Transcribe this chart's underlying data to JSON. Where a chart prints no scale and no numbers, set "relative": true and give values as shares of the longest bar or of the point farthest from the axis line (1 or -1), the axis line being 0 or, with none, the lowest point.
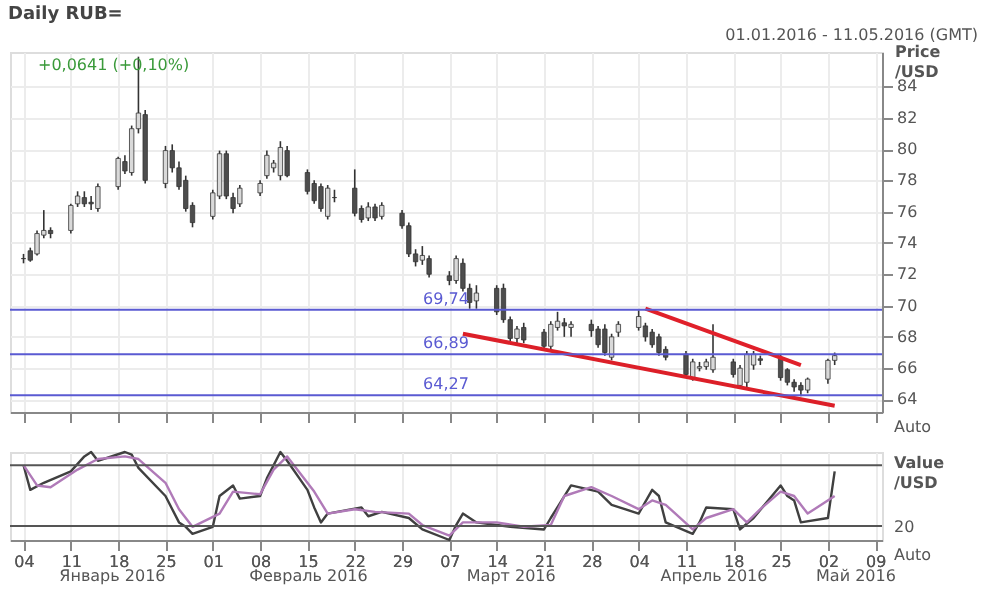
{
  "chart_data": [
    {
      "type": "candlestick",
      "title": "Daily RUB=",
      "subtitle": "+0,0641 (+0,10%)",
      "ylabel": "Price /USD",
      "annotations": [
        "01.01.2016 - 11.05.2016 (GMT)",
        "Auto"
      ],
      "x": [
        "2016-01-04",
        "2016-01-05",
        "2016-01-06",
        "2016-01-07",
        "2016-01-08",
        "2016-01-11",
        "2016-01-12",
        "2016-01-13",
        "2016-01-14",
        "2016-01-15",
        "2016-01-18",
        "2016-01-19",
        "2016-01-20",
        "2016-01-21",
        "2016-01-22",
        "2016-01-25",
        "2016-01-26",
        "2016-01-27",
        "2016-01-28",
        "2016-01-29",
        "2016-02-01",
        "2016-02-02",
        "2016-02-03",
        "2016-02-04",
        "2016-02-05",
        "2016-02-08",
        "2016-02-09",
        "2016-02-10",
        "2016-02-11",
        "2016-02-12",
        "2016-02-15",
        "2016-02-16",
        "2016-02-17",
        "2016-02-18",
        "2016-02-19",
        "2016-02-22",
        "2016-02-23",
        "2016-02-24",
        "2016-02-25",
        "2016-02-26",
        "2016-02-29",
        "2016-03-01",
        "2016-03-02",
        "2016-03-03",
        "2016-03-04",
        "2016-03-07",
        "2016-03-08",
        "2016-03-09",
        "2016-03-10",
        "2016-03-11",
        "2016-03-14",
        "2016-03-15",
        "2016-03-16",
        "2016-03-17",
        "2016-03-18",
        "2016-03-21",
        "2016-03-22",
        "2016-03-23",
        "2016-03-24",
        "2016-03-25",
        "2016-03-28",
        "2016-03-29",
        "2016-03-30",
        "2016-03-31",
        "2016-04-01",
        "2016-04-04",
        "2016-04-05",
        "2016-04-06",
        "2016-04-07",
        "2016-04-08",
        "2016-04-11",
        "2016-04-12",
        "2016-04-13",
        "2016-04-14",
        "2016-04-15",
        "2016-04-18",
        "2016-04-19",
        "2016-04-20",
        "2016-04-21",
        "2016-04-22",
        "2016-04-25",
        "2016-04-26",
        "2016-04-27",
        "2016-04-28",
        "2016-04-29",
        "2016-05-02",
        "2016-05-03"
      ],
      "ohlc": [
        [
          73.0,
          73.3,
          72.7,
          73.0
        ],
        [
          73.5,
          73.7,
          72.8,
          72.9
        ],
        [
          73.3,
          74.8,
          73.2,
          74.6
        ],
        [
          74.5,
          76.1,
          74.3,
          74.8
        ],
        [
          74.8,
          75.0,
          74.3,
          74.6
        ],
        [
          74.8,
          76.5,
          74.6,
          76.4
        ],
        [
          76.5,
          77.3,
          76.3,
          77.0
        ],
        [
          76.9,
          77.3,
          76.3,
          76.5
        ],
        [
          76.6,
          77.0,
          76.1,
          76.5
        ],
        [
          76.2,
          77.8,
          76.0,
          77.6
        ],
        [
          77.6,
          79.5,
          77.4,
          79.4
        ],
        [
          79.2,
          79.6,
          78.4,
          78.6
        ],
        [
          78.5,
          81.5,
          78.3,
          81.3
        ],
        [
          81.3,
          85.9,
          81.0,
          82.3
        ],
        [
          82.2,
          82.5,
          77.8,
          78.0
        ],
        [
          77.8,
          80.2,
          77.5,
          79.9
        ],
        [
          79.9,
          80.3,
          78.5,
          78.8
        ],
        [
          78.8,
          79.2,
          77.4,
          77.6
        ],
        [
          78.0,
          78.3,
          76.0,
          76.2
        ],
        [
          76.4,
          76.6,
          75.0,
          75.3
        ],
        [
          75.7,
          77.4,
          75.5,
          77.2
        ],
        [
          77.0,
          79.9,
          76.8,
          79.7
        ],
        [
          79.7,
          79.9,
          76.8,
          77.0
        ],
        [
          76.9,
          77.2,
          75.9,
          76.2
        ],
        [
          76.5,
          77.7,
          76.3,
          77.5
        ],
        [
          77.2,
          78.0,
          77.0,
          77.8
        ],
        [
          78.3,
          79.9,
          78.1,
          79.6
        ],
        [
          78.8,
          79.3,
          78.5,
          79.1
        ],
        [
          78.3,
          80.5,
          78.0,
          80.1
        ],
        [
          79.9,
          80.2,
          78.2,
          78.3
        ],
        [
          78.5,
          78.7,
          77.1,
          77.3
        ],
        [
          77.8,
          78.0,
          76.5,
          76.7
        ],
        [
          77.6,
          77.8,
          76.0,
          76.2
        ],
        [
          75.7,
          77.7,
          75.5,
          77.5
        ],
        [
          76.9,
          77.4,
          76.6,
          76.9
        ],
        [
          77.5,
          78.7,
          75.7,
          75.9
        ],
        [
          76.2,
          76.4,
          75.3,
          75.5
        ],
        [
          75.6,
          76.6,
          75.4,
          76.3
        ],
        [
          76.3,
          76.5,
          75.4,
          75.6
        ],
        [
          75.7,
          76.6,
          75.5,
          76.4
        ],
        [
          75.9,
          76.1,
          74.9,
          75.1
        ],
        [
          75.1,
          75.3,
          73.1,
          73.3
        ],
        [
          73.3,
          73.6,
          72.5,
          72.8
        ],
        [
          72.9,
          73.8,
          72.6,
          73.2
        ],
        [
          73.0,
          73.2,
          71.8,
          72.0
        ],
        [
          71.9,
          72.2,
          71.3,
          71.6
        ],
        [
          71.6,
          73.2,
          71.4,
          73.0
        ],
        [
          72.7,
          73.0,
          70.9,
          71.1
        ],
        [
          71.1,
          71.4,
          69.8,
          70.2
        ],
        [
          70.3,
          71.3,
          69.8,
          70.8
        ],
        [
          71.1,
          71.3,
          69.4,
          69.6
        ],
        [
          71.1,
          71.4,
          68.9,
          69.1
        ],
        [
          69.1,
          69.3,
          67.7,
          67.9
        ],
        [
          67.9,
          68.7,
          67.6,
          68.5
        ],
        [
          68.6,
          68.9,
          67.6,
          67.8
        ],
        [
          68.3,
          68.5,
          67.2,
          67.4
        ],
        [
          67.4,
          69.0,
          67.2,
          68.8
        ],
        [
          68.6,
          69.6,
          68.4,
          69.0
        ],
        [
          68.9,
          69.2,
          68.0,
          68.7
        ],
        [
          68.6,
          69.0,
          68.0,
          68.8
        ],
        [
          68.8,
          69.1,
          68.0,
          68.4
        ],
        [
          68.5,
          68.7,
          67.3,
          67.5
        ],
        [
          68.5,
          68.8,
          66.8,
          67.0
        ],
        [
          66.7,
          68.2,
          66.5,
          68.0
        ],
        [
          68.3,
          69.0,
          68.0,
          68.8
        ],
        [
          68.6,
          69.7,
          68.4,
          69.3
        ],
        [
          68.7,
          68.9,
          67.7,
          68.0
        ],
        [
          68.3,
          68.5,
          67.3,
          67.5
        ],
        [
          68.0,
          68.2,
          66.8,
          67.0
        ],
        [
          67.2,
          67.4,
          66.5,
          66.7
        ],
        [
          66.9,
          67.1,
          65.4,
          65.6
        ],
        [
          65.4,
          66.6,
          65.2,
          66.4
        ],
        [
          66.0,
          66.4,
          65.8,
          66.1
        ],
        [
          66.1,
          66.6,
          65.9,
          66.4
        ],
        [
          65.9,
          68.8,
          65.7,
          66.7
        ],
        [
          66.4,
          66.6,
          65.4,
          65.6
        ],
        [
          64.9,
          66.2,
          64.7,
          66.0
        ],
        [
          65.1,
          67.1,
          64.8,
          66.9
        ],
        [
          66.2,
          67.1,
          65.9,
          66.9
        ],
        [
          66.6,
          66.8,
          66.2,
          66.5
        ],
        [
          66.7,
          66.9,
          65.2,
          65.4
        ],
        [
          65.9,
          66.0,
          64.9,
          65.1
        ],
        [
          65.1,
          65.3,
          64.5,
          64.8
        ],
        [
          64.9,
          65.1,
          64.2,
          64.6
        ],
        [
          64.6,
          65.4,
          64.4,
          65.3
        ],
        [
          65.3,
          66.6,
          65.0,
          66.5
        ],
        [
          66.5,
          67.0,
          66.2,
          66.8
        ]
      ],
      "colors": [
        "#333333",
        "#4d4d4d",
        "#d9d9d9",
        "#d9d9d9",
        "#4d4d4d",
        "#d9d9d9",
        "#d9d9d9",
        "#4d4d4d",
        "#4d4d4d",
        "#d9d9d9",
        "#d9d9d9",
        "#4d4d4d",
        "#d9d9d9",
        "#d9d9d9",
        "#4d4d4d",
        "#d9d9d9",
        "#4d4d4d",
        "#4d4d4d",
        "#4d4d4d",
        "#4d4d4d",
        "#d9d9d9",
        "#d9d9d9",
        "#4d4d4d",
        "#4d4d4d",
        "#d9d9d9",
        "#d9d9d9",
        "#d9d9d9",
        "#d9d9d9",
        "#d9d9d9",
        "#4d4d4d",
        "#4d4d4d",
        "#4d4d4d",
        "#4d4d4d",
        "#d9d9d9",
        "#333333",
        "#4d4d4d",
        "#4d4d4d",
        "#d9d9d9",
        "#4d4d4d",
        "#d9d9d9",
        "#4d4d4d",
        "#4d4d4d",
        "#4d4d4d",
        "#d9d9d9",
        "#4d4d4d",
        "#4d4d4d",
        "#d9d9d9",
        "#4d4d4d",
        "#4d4d4d",
        "#d9d9d9",
        "#4d4d4d",
        "#4d4d4d",
        "#4d4d4d",
        "#d9d9d9",
        "#4d4d4d",
        "#4d4d4d",
        "#d9d9d9",
        "#d9d9d9",
        "#4d4d4d",
        "#d9d9d9",
        "#4d4d4d",
        "#4d4d4d",
        "#4d4d4d",
        "#d9d9d9",
        "#d9d9d9",
        "#d9d9d9",
        "#4d4d4d",
        "#4d4d4d",
        "#4d4d4d",
        "#4d4d4d",
        "#4d4d4d",
        "#d9d9d9",
        "#d9d9d9",
        "#d9d9d9",
        "#d9d9d9",
        "#4d4d4d",
        "#d9d9d9",
        "#d9d9d9",
        "#d9d9d9",
        "#4d4d4d",
        "#4d4d4d",
        "#4d4d4d",
        "#4d4d4d",
        "#4d4d4d",
        "#d9d9d9",
        "#d9d9d9",
        "#d9d9d9"
      ],
      "series": [
        {
          "type": "line",
          "color": "#e0202a",
          "x": [
            "2016-04-05",
            "2016-04-28"
          ],
          "values": [
            69.8,
            66.2
          ]
        },
        {
          "type": "line",
          "color": "#dc1f28",
          "x": [
            "2016-03-09",
            "2016-05-03"
          ],
          "values": [
            68.2,
            63.6
          ]
        }
      ],
      "ref_lines": [
        {
          "axis": "y",
          "value": 69.74,
          "label": "69,74",
          "color": "#5a5ad2"
        },
        {
          "axis": "y",
          "value": 66.89,
          "label": "66,89",
          "color": "#5a5ad2"
        },
        {
          "axis": "y",
          "value": 64.27,
          "label": "64,27",
          "color": "#5a5ad2"
        }
      ],
      "xlim": [
        "2016-01-02",
        "2016-05-10"
      ],
      "xticks": [
        {
          "value": "2016-01-04",
          "label": null
        },
        {
          "value": "2016-01-11",
          "label": null
        },
        {
          "value": "2016-01-18",
          "label": null
        },
        {
          "value": "2016-01-25",
          "label": null
        },
        {
          "value": "2016-02-01",
          "label": null
        },
        {
          "value": "2016-02-08",
          "label": null
        },
        {
          "value": "2016-02-15",
          "label": null
        },
        {
          "value": "2016-02-22",
          "label": null
        },
        {
          "value": "2016-02-29",
          "label": null
        },
        {
          "value": "2016-03-07",
          "label": null
        },
        {
          "value": "2016-03-14",
          "label": null
        },
        {
          "value": "2016-03-21",
          "label": null
        },
        {
          "value": "2016-03-28",
          "label": null
        },
        {
          "value": "2016-04-04",
          "label": null
        },
        {
          "value": "2016-04-11",
          "label": null
        },
        {
          "value": "2016-04-18",
          "label": null
        },
        {
          "value": "2016-04-25",
          "label": null
        },
        {
          "value": "2016-05-02",
          "label": null
        },
        {
          "value": "2016-05-09",
          "label": null
        }
      ],
      "ylim": [
        63.2,
        86.2
      ],
      "yticks": [
        64,
        66,
        68,
        70,
        72,
        74,
        76,
        78,
        80,
        82,
        84
      ],
      "grid": true,
      "tick_labels": "y",
      "marker": "none"
    },
    {
      "type": "line",
      "relative": true,
      "ylabel": "Value /USD",
      "annotations": [
        "20",
        "Auto"
      ],
      "series": [
        {
          "color": "#404040",
          "x": [
            "2016-01-04",
            "2016-01-05",
            "2016-01-07",
            "2016-01-11",
            "2016-01-13",
            "2016-01-14",
            "2016-01-15",
            "2016-01-19",
            "2016-01-20",
            "2016-01-21",
            "2016-01-25",
            "2016-01-27",
            "2016-01-28",
            "2016-01-29",
            "2016-02-01",
            "2016-02-02",
            "2016-02-04",
            "2016-02-05",
            "2016-02-08",
            "2016-02-09",
            "2016-02-11",
            "2016-02-12",
            "2016-02-15",
            "2016-02-16",
            "2016-02-17",
            "2016-02-18",
            "2016-02-23",
            "2016-02-24",
            "2016-02-26",
            "2016-03-01",
            "2016-03-03",
            "2016-03-07",
            "2016-03-08",
            "2016-03-09",
            "2016-03-11",
            "2016-03-14",
            "2016-03-16",
            "2016-03-21",
            "2016-03-22",
            "2016-03-25",
            "2016-03-29",
            "2016-03-31",
            "2016-04-04",
            "2016-04-06",
            "2016-04-07",
            "2016-04-08",
            "2016-04-12",
            "2016-04-13",
            "2016-04-14",
            "2016-04-18",
            "2016-04-19",
            "2016-04-21",
            "2016-04-25",
            "2016-04-26",
            "2016-04-27",
            "2016-04-28",
            "2016-05-02",
            "2016-05-03"
          ],
          "values": [
            0.85,
            0.57,
            0.65,
            0.78,
            0.95,
            1.0,
            0.9,
            1.0,
            0.97,
            0.82,
            0.5,
            0.2,
            0.15,
            0.07,
            0.15,
            0.5,
            0.62,
            0.47,
            0.5,
            0.7,
            1.0,
            0.9,
            0.57,
            0.37,
            0.2,
            0.3,
            0.37,
            0.27,
            0.32,
            0.25,
            0.12,
            0.0,
            0.17,
            0.3,
            0.2,
            0.17,
            0.15,
            0.12,
            0.25,
            0.62,
            0.55,
            0.4,
            0.3,
            0.57,
            0.5,
            0.2,
            0.07,
            0.2,
            0.37,
            0.35,
            0.12,
            0.25,
            0.62,
            0.5,
            0.45,
            0.2,
            0.25,
            0.78
          ]
        },
        {
          "color": "#b07ab8",
          "x": [
            "2016-01-04",
            "2016-01-06",
            "2016-01-08",
            "2016-01-12",
            "2016-01-15",
            "2016-01-19",
            "2016-01-21",
            "2016-01-25",
            "2016-01-27",
            "2016-01-29",
            "2016-02-02",
            "2016-02-04",
            "2016-02-08",
            "2016-02-10",
            "2016-02-12",
            "2016-02-16",
            "2016-02-18",
            "2016-02-22",
            "2016-02-25",
            "2016-03-01",
            "2016-03-03",
            "2016-03-07",
            "2016-03-09",
            "2016-03-14",
            "2016-03-18",
            "2016-03-22",
            "2016-03-24",
            "2016-03-28",
            "2016-03-31",
            "2016-04-04",
            "2016-04-06",
            "2016-04-08",
            "2016-04-12",
            "2016-04-14",
            "2016-04-18",
            "2016-04-20",
            "2016-04-22",
            "2016-04-25",
            "2016-04-27",
            "2016-04-29",
            "2016-05-03"
          ],
          "values": [
            0.85,
            0.62,
            0.6,
            0.8,
            0.92,
            0.95,
            0.92,
            0.65,
            0.35,
            0.15,
            0.3,
            0.55,
            0.52,
            0.8,
            0.95,
            0.55,
            0.3,
            0.35,
            0.32,
            0.3,
            0.17,
            0.05,
            0.2,
            0.2,
            0.15,
            0.17,
            0.5,
            0.6,
            0.5,
            0.35,
            0.45,
            0.4,
            0.12,
            0.25,
            0.35,
            0.2,
            0.35,
            0.55,
            0.5,
            0.3,
            0.5
          ]
        }
      ],
      "ref_lines": [
        {
          "axis": "y",
          "value": 0.85,
          "color": "#555555"
        },
        {
          "axis": "y",
          "value": 0.16,
          "color": "#555555"
        }
      ],
      "xlim": [
        "2016-01-02",
        "2016-05-10"
      ],
      "x2lim": [
        "2016-01-02",
        "2016-05-10"
      ],
      "xticks": [
        {
          "value": "2016-01-04",
          "label": "04"
        },
        {
          "value": "2016-01-11",
          "label": "11"
        },
        {
          "value": "2016-01-18",
          "label": "18"
        },
        {
          "value": "2016-01-25",
          "label": "25"
        },
        {
          "value": "2016-02-01",
          "label": "01"
        },
        {
          "value": "2016-02-08",
          "label": "08"
        },
        {
          "value": "2016-02-15",
          "label": "15"
        },
        {
          "value": "2016-02-22",
          "label": "22"
        },
        {
          "value": "2016-02-29",
          "label": "29"
        },
        {
          "value": "2016-03-07",
          "label": "07"
        },
        {
          "value": "2016-03-14",
          "label": "14"
        },
        {
          "value": "2016-03-21",
          "label": "21"
        },
        {
          "value": "2016-03-28",
          "label": "28"
        },
        {
          "value": "2016-04-04",
          "label": "04"
        },
        {
          "value": "2016-04-11",
          "label": "11"
        },
        {
          "value": "2016-04-18",
          "label": "18"
        },
        {
          "value": "2016-04-25",
          "label": "25"
        },
        {
          "value": "2016-05-02",
          "label": "02"
        },
        {
          "value": "2016-05-09",
          "label": "09"
        }
      ],
      "x2ticks": [
        {
          "value": "2016-01-17",
          "label": "Январь 2016"
        },
        {
          "value": "2016-02-15",
          "label": "Февраль 2016"
        },
        {
          "value": "2016-03-16",
          "label": "Март 2016"
        },
        {
          "value": "2016-04-15",
          "label": "Апрель 2016"
        },
        {
          "value": "2016-05-06",
          "label": "Май 2016"
        }
      ],
      "grid": "x",
      "tick_labels": "x",
      "marker": "none"
    }
  ]
}
